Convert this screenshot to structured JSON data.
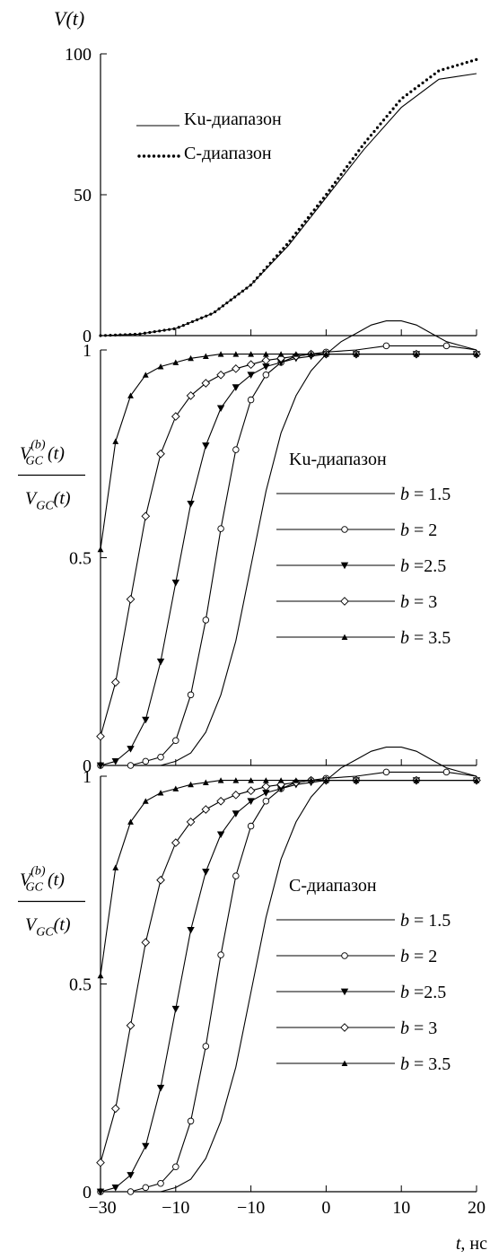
{
  "chart_data": [
    {
      "type": "line",
      "ylabel": "V(t)",
      "ylim": [
        0,
        100
      ],
      "xlim": [
        -30,
        20
      ],
      "y_ticks": [
        "0",
        "50",
        "100"
      ],
      "legend": [
        "Ku-диапазон",
        "C-диапазон"
      ],
      "legend_placement": "top-left",
      "series": [
        {
          "name": "Ku-диапазон",
          "style": "solid",
          "x": [
            -30,
            -25,
            -20,
            -15,
            -10,
            -5,
            0,
            5,
            10,
            15,
            20
          ],
          "y": [
            0,
            0.5,
            2.5,
            8,
            18,
            32,
            49,
            66,
            81,
            91,
            93
          ]
        },
        {
          "name": "C-диапазон",
          "style": "dotted",
          "x": [
            -30,
            -25,
            -20,
            -15,
            -10,
            -5,
            0,
            5,
            10,
            15,
            20
          ],
          "y": [
            0,
            0.5,
            2.5,
            8,
            18,
            33,
            50,
            68,
            84,
            94,
            98
          ]
        }
      ]
    },
    {
      "type": "line",
      "ylabel_top": "V",
      "ylabel_top_sub": "GC",
      "ylabel_top_sup": "(b)",
      "ylabel_top_arg": "(t)",
      "ylabel_bottom": "V",
      "ylabel_bottom_sub": "GC",
      "ylabel_bottom_arg": "(t)",
      "ylim": [
        0,
        1
      ],
      "xlim": [
        -30,
        20
      ],
      "y_ticks": [
        "0",
        "0.5",
        "1"
      ],
      "legend_title": "Ku-диапазон",
      "legend_placement": "right",
      "series": [
        {
          "name": "b = 1.5",
          "marker": "none",
          "x": [
            -30,
            -22,
            -20,
            -18,
            -16,
            -14,
            -12,
            -10,
            -8,
            -6,
            -4,
            -2,
            0,
            2,
            4,
            6,
            8,
            10,
            12,
            14,
            16,
            18,
            20
          ],
          "y": [
            0,
            0,
            0.01,
            0.03,
            0.08,
            0.17,
            0.3,
            0.48,
            0.66,
            0.8,
            0.89,
            0.95,
            0.99,
            1.02,
            1.04,
            1.06,
            1.07,
            1.07,
            1.06,
            1.04,
            1.02,
            1.01,
            1.0
          ]
        },
        {
          "name": "b = 2",
          "marker": "circle",
          "x": [
            -30,
            -26,
            -24,
            -22,
            -20,
            -18,
            -16,
            -14,
            -12,
            -10,
            -8,
            -6,
            -4,
            -2,
            0,
            4,
            8,
            12,
            16,
            20
          ],
          "y": [
            0,
            0,
            0.01,
            0.02,
            0.06,
            0.17,
            0.35,
            0.57,
            0.76,
            0.88,
            0.94,
            0.97,
            0.985,
            0.99,
            0.995,
            1.0,
            1.01,
            1.01,
            1.01,
            1.0
          ]
        },
        {
          "name": "b =2.5",
          "marker": "triangle-down",
          "x": [
            -30,
            -28,
            -26,
            -24,
            -22,
            -20,
            -18,
            -16,
            -14,
            -12,
            -10,
            -8,
            -6,
            -4,
            -2,
            0,
            4,
            8,
            12,
            16,
            20
          ],
          "y": [
            0,
            0.01,
            0.04,
            0.11,
            0.25,
            0.44,
            0.63,
            0.77,
            0.86,
            0.91,
            0.94,
            0.96,
            0.97,
            0.98,
            0.985,
            0.99,
            0.99,
            0.99,
            0.99,
            0.99,
            0.99
          ]
        },
        {
          "name": "b = 3",
          "marker": "diamond",
          "x": [
            -30,
            -28,
            -26,
            -24,
            -22,
            -20,
            -18,
            -16,
            -14,
            -12,
            -10,
            -8,
            -6,
            -4,
            -2,
            0,
            4,
            8,
            12,
            16,
            20
          ],
          "y": [
            0.07,
            0.2,
            0.4,
            0.6,
            0.75,
            0.84,
            0.89,
            0.92,
            0.94,
            0.955,
            0.965,
            0.975,
            0.98,
            0.985,
            0.99,
            0.99,
            0.99,
            0.99,
            0.99,
            0.99,
            0.99
          ]
        },
        {
          "name": "b = 3.5",
          "marker": "triangle-up",
          "x": [
            -30,
            -28,
            -26,
            -24,
            -22,
            -20,
            -18,
            -16,
            -14,
            -12,
            -10,
            -8,
            -6,
            -4,
            -2,
            0,
            4,
            8,
            12,
            16,
            20
          ],
          "y": [
            0.52,
            0.78,
            0.89,
            0.94,
            0.96,
            0.97,
            0.98,
            0.985,
            0.99,
            0.99,
            0.99,
            0.99,
            0.99,
            0.99,
            0.99,
            0.99,
            0.99,
            0.99,
            0.99,
            0.99,
            0.99
          ]
        }
      ]
    },
    {
      "type": "line",
      "ylabel_top": "V",
      "ylabel_top_sub": "GC",
      "ylabel_top_sup": "(b)",
      "ylabel_top_arg": "(t)",
      "ylabel_bottom": "V",
      "ylabel_bottom_sub": "GC",
      "ylabel_bottom_arg": "(t)",
      "ylim": [
        0,
        1
      ],
      "xlim": [
        -30,
        20
      ],
      "y_ticks": [
        "0",
        "0.5",
        "1"
      ],
      "x_ticks": [
        "−30",
        "−10",
        "−10",
        "−10",
        "0",
        "10",
        "20"
      ],
      "xlabel": "t, нс",
      "legend_title": "C-диапазон",
      "legend_placement": "right",
      "series": [
        {
          "name": "b = 1.5",
          "marker": "none",
          "x": [
            -30,
            -22,
            -20,
            -18,
            -16,
            -14,
            -12,
            -10,
            -8,
            -6,
            -4,
            -2,
            0,
            2,
            4,
            6,
            8,
            10,
            12,
            14,
            16,
            18,
            20
          ],
          "y": [
            0,
            0,
            0.01,
            0.03,
            0.08,
            0.17,
            0.3,
            0.48,
            0.66,
            0.8,
            0.89,
            0.95,
            0.99,
            1.02,
            1.04,
            1.06,
            1.07,
            1.07,
            1.06,
            1.04,
            1.02,
            1.01,
            1.0
          ]
        },
        {
          "name": "b = 2",
          "marker": "circle",
          "x": [
            -30,
            -26,
            -24,
            -22,
            -20,
            -18,
            -16,
            -14,
            -12,
            -10,
            -8,
            -6,
            -4,
            -2,
            0,
            4,
            8,
            12,
            16,
            20
          ],
          "y": [
            0,
            0,
            0.01,
            0.02,
            0.06,
            0.17,
            0.35,
            0.57,
            0.76,
            0.88,
            0.94,
            0.97,
            0.985,
            0.99,
            0.995,
            1.0,
            1.01,
            1.01,
            1.01,
            1.0
          ]
        },
        {
          "name": "b =2.5",
          "marker": "triangle-down",
          "x": [
            -30,
            -28,
            -26,
            -24,
            -22,
            -20,
            -18,
            -16,
            -14,
            -12,
            -10,
            -8,
            -6,
            -4,
            -2,
            0,
            4,
            8,
            12,
            16,
            20
          ],
          "y": [
            0,
            0.01,
            0.04,
            0.11,
            0.25,
            0.44,
            0.63,
            0.77,
            0.86,
            0.91,
            0.94,
            0.96,
            0.97,
            0.98,
            0.985,
            0.99,
            0.99,
            0.99,
            0.99,
            0.99,
            0.99
          ]
        },
        {
          "name": "b = 3",
          "marker": "diamond",
          "x": [
            -30,
            -28,
            -26,
            -24,
            -22,
            -20,
            -18,
            -16,
            -14,
            -12,
            -10,
            -8,
            -6,
            -4,
            -2,
            0,
            4,
            8,
            12,
            16,
            20
          ],
          "y": [
            0.07,
            0.2,
            0.4,
            0.6,
            0.75,
            0.84,
            0.89,
            0.92,
            0.94,
            0.955,
            0.965,
            0.975,
            0.98,
            0.985,
            0.99,
            0.99,
            0.99,
            0.99,
            0.99,
            0.99,
            0.99
          ]
        },
        {
          "name": "b = 3.5",
          "marker": "triangle-up",
          "x": [
            -30,
            -28,
            -26,
            -24,
            -22,
            -20,
            -18,
            -16,
            -14,
            -12,
            -10,
            -8,
            -6,
            -4,
            -2,
            0,
            4,
            8,
            12,
            16,
            20
          ],
          "y": [
            0.52,
            0.78,
            0.89,
            0.94,
            0.96,
            0.97,
            0.98,
            0.985,
            0.99,
            0.99,
            0.99,
            0.99,
            0.99,
            0.99,
            0.99,
            0.99,
            0.99,
            0.99,
            0.99,
            0.99,
            0.99
          ]
        }
      ]
    }
  ]
}
